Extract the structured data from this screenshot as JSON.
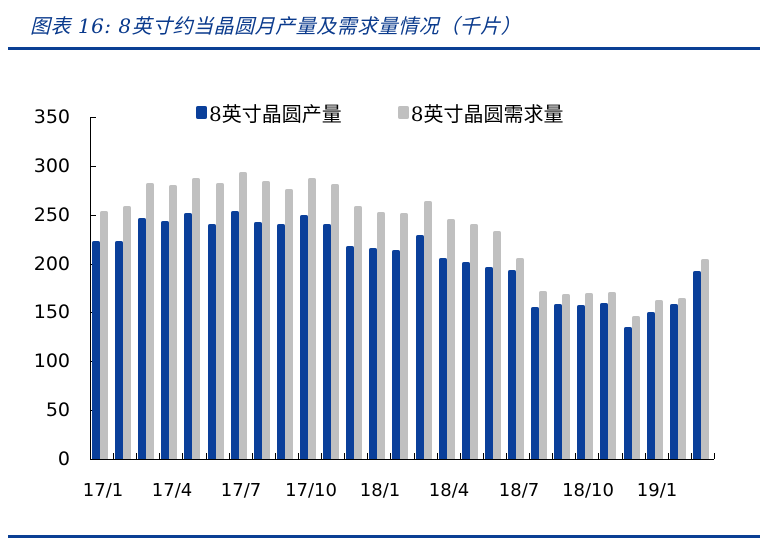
{
  "title": "图表 16:  8英寸约当晶圆月产量及需求量情况（千片）",
  "colors": {
    "production": "#0a3f9a",
    "demand": "#c0c0c0",
    "accent": "#0a3f94"
  },
  "legend": {
    "production_label": "8英寸晶圆产量",
    "demand_label": "8英寸晶圆需求量"
  },
  "chart_data": {
    "type": "bar",
    "title": "图表 16:  8英寸约当晶圆月产量及需求量情况（千片）",
    "xlabel": "",
    "ylabel": "",
    "ylim": [
      0,
      350
    ],
    "yticks": [
      0,
      50,
      100,
      150,
      200,
      250,
      300,
      350
    ],
    "grid": false,
    "legend_position": "top",
    "categories": [
      "17/1",
      "17/2",
      "17/3",
      "17/4",
      "17/5",
      "17/6",
      "17/7",
      "17/8",
      "17/9",
      "17/10",
      "17/11",
      "17/12",
      "18/1",
      "18/2",
      "18/3",
      "18/4",
      "18/5",
      "18/6",
      "18/7",
      "18/8",
      "18/9",
      "18/10",
      "18/11",
      "18/12",
      "19/1",
      "19/2",
      "19/3"
    ],
    "xtick_labels": [
      {
        "index": 0,
        "label": "17/1"
      },
      {
        "index": 3,
        "label": "17/4"
      },
      {
        "index": 6,
        "label": "17/7"
      },
      {
        "index": 9,
        "label": "17/10"
      },
      {
        "index": 12,
        "label": "18/1"
      },
      {
        "index": 15,
        "label": "18/4"
      },
      {
        "index": 18,
        "label": "18/7"
      },
      {
        "index": 21,
        "label": "18/10"
      },
      {
        "index": 24,
        "label": "19/1"
      }
    ],
    "series": [
      {
        "name": "8英寸晶圆产量",
        "color": "#0a3f9a",
        "values": [
          223,
          223,
          247,
          244,
          252,
          241,
          254,
          243,
          240,
          250,
          241,
          218,
          216,
          214,
          229,
          206,
          202,
          196,
          193,
          156,
          159,
          158,
          160,
          135,
          150,
          159,
          192
        ]
      },
      {
        "name": "8英寸晶圆需求量",
        "color": "#c0c0c0",
        "values": [
          254,
          259,
          282,
          280,
          288,
          282,
          294,
          284,
          276,
          288,
          281,
          259,
          253,
          252,
          264,
          246,
          240,
          233,
          206,
          172,
          169,
          170,
          171,
          146,
          163,
          165,
          205
        ]
      }
    ]
  }
}
